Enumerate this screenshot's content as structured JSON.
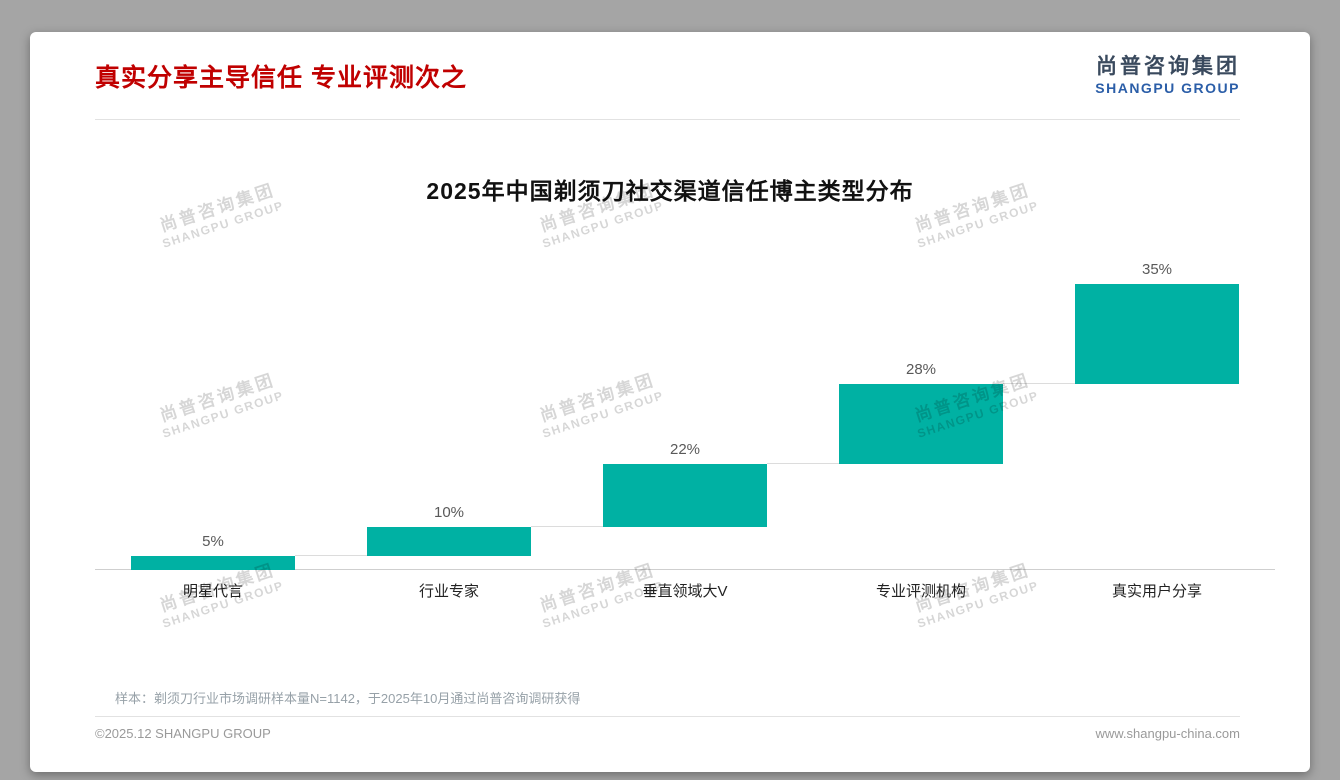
{
  "page": {
    "title": "真实分享主导信任 专业评测次之",
    "logo": {
      "cn": "尚普咨询集团",
      "en": "SHANGPU GROUP"
    },
    "note": "样本：剃须刀行业市场调研样本量N=1142，于2025年10月通过尚普咨询调研获得",
    "footer": {
      "left": "©2025.12 SHANGPU GROUP",
      "right": "www.shangpu-china.com"
    },
    "watermark": {
      "cn": "尚普咨询集团",
      "en": "SHANGPU GROUP"
    }
  },
  "chart_data": {
    "type": "bar",
    "subtype": "waterfall-steps",
    "title": "2025年中国剃须刀社交渠道信任博主类型分布",
    "categories": [
      "明星代言",
      "行业专家",
      "垂直领域大V",
      "专业评测机构",
      "真实用户分享"
    ],
    "values": [
      5,
      10,
      22,
      28,
      35
    ],
    "labels": [
      "5%",
      "10%",
      "22%",
      "28%",
      "35%"
    ],
    "cumulative": [
      5,
      15,
      37,
      65,
      100
    ],
    "bar_color": "#00B1A3",
    "ylim": [
      0,
      100
    ],
    "grid": false,
    "legend": "none"
  }
}
